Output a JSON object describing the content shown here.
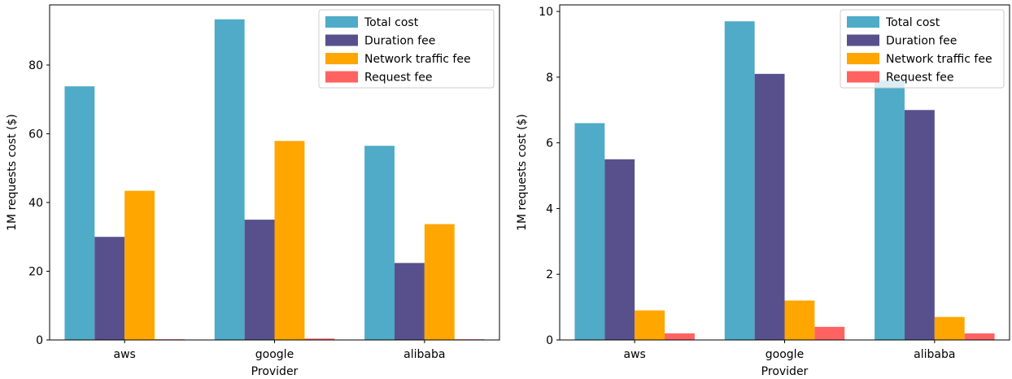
{
  "colors": {
    "total_cost": "#4fabc7",
    "duration_fee": "#58508d",
    "network_fee": "#ffa600",
    "request_fee": "#ff6361"
  },
  "chart_data": [
    {
      "type": "bar",
      "categories": [
        "aws",
        "google",
        "alibaba"
      ],
      "xlabel": "Provider",
      "ylabel": "1M requests cost ($)",
      "ylim": [
        0,
        97.5
      ],
      "yticks": [
        "0",
        "20",
        "40",
        "60",
        "80"
      ],
      "ytick_values": [
        0,
        20,
        40,
        60,
        80
      ],
      "legend_position": "top-right",
      "grid": false,
      "series": [
        {
          "name": "Total cost",
          "color_key": "total_cost",
          "values": [
            73.8,
            93.3,
            56.5
          ]
        },
        {
          "name": "Duration fee",
          "color_key": "duration_fee",
          "values": [
            30.0,
            35.0,
            22.4
          ]
        },
        {
          "name": "Network traffic fee",
          "color_key": "network_fee",
          "values": [
            43.4,
            57.9,
            33.7
          ]
        },
        {
          "name": "Request fee",
          "color_key": "request_fee",
          "values": [
            0.2,
            0.4,
            0.2
          ]
        }
      ]
    },
    {
      "type": "bar",
      "categories": [
        "aws",
        "google",
        "alibaba"
      ],
      "xlabel": "Provider",
      "ylabel": "1M requests cost ($)",
      "ylim": [
        0,
        10.2
      ],
      "yticks": [
        "0",
        "2",
        "4",
        "6",
        "8",
        "10"
      ],
      "ytick_values": [
        0,
        2,
        4,
        6,
        8,
        10
      ],
      "legend_position": "top-right",
      "grid": false,
      "series": [
        {
          "name": "Total cost",
          "color_key": "total_cost",
          "values": [
            6.6,
            9.7,
            7.9
          ]
        },
        {
          "name": "Duration fee",
          "color_key": "duration_fee",
          "values": [
            5.5,
            8.1,
            7.0
          ]
        },
        {
          "name": "Network traffic fee",
          "color_key": "network_fee",
          "values": [
            0.9,
            1.2,
            0.7
          ]
        },
        {
          "name": "Request fee",
          "color_key": "request_fee",
          "values": [
            0.2,
            0.4,
            0.2
          ]
        }
      ]
    }
  ]
}
